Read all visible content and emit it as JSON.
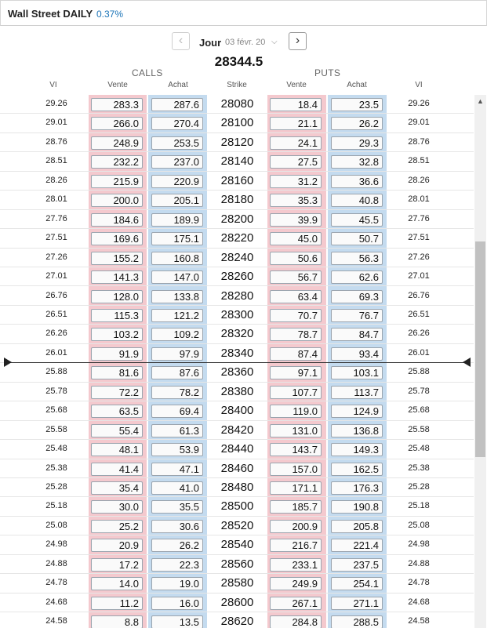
{
  "header": {
    "title": "Wall Street DAILY",
    "change": "0.37%"
  },
  "nav": {
    "prev_icon": "chevron-left-icon",
    "next_icon": "chevron-right-icon",
    "period": "Jour",
    "date": "03 févr. 20",
    "caret": "⌵"
  },
  "underlying_price": "28344.5",
  "groups": {
    "calls": "CALLS",
    "puts": "PUTS"
  },
  "columns": {
    "vi_left": "VI",
    "call_vente": "Vente",
    "call_achat": "Achat",
    "strike": "Strike",
    "put_vente": "Vente",
    "put_achat": "Achat",
    "vi_right": "VI"
  },
  "colors": {
    "sell_band": "#f4c9ce",
    "buy_band": "#c4dbef",
    "change": "#1a73b7"
  },
  "scroll": {
    "thumb_fraction": 0.4
  },
  "rows": [
    {
      "vi": "29.26",
      "cv": "283.3",
      "ca": "287.6",
      "strike": "28080",
      "pv": "18.4",
      "pa": "23.5",
      "vi2": "29.26"
    },
    {
      "vi": "29.01",
      "cv": "266.0",
      "ca": "270.4",
      "strike": "28100",
      "pv": "21.1",
      "pa": "26.2",
      "vi2": "29.01"
    },
    {
      "vi": "28.76",
      "cv": "248.9",
      "ca": "253.5",
      "strike": "28120",
      "pv": "24.1",
      "pa": "29.3",
      "vi2": "28.76"
    },
    {
      "vi": "28.51",
      "cv": "232.2",
      "ca": "237.0",
      "strike": "28140",
      "pv": "27.5",
      "pa": "32.8",
      "vi2": "28.51"
    },
    {
      "vi": "28.26",
      "cv": "215.9",
      "ca": "220.9",
      "strike": "28160",
      "pv": "31.2",
      "pa": "36.6",
      "vi2": "28.26"
    },
    {
      "vi": "28.01",
      "cv": "200.0",
      "ca": "205.1",
      "strike": "28180",
      "pv": "35.3",
      "pa": "40.8",
      "vi2": "28.01"
    },
    {
      "vi": "27.76",
      "cv": "184.6",
      "ca": "189.9",
      "strike": "28200",
      "pv": "39.9",
      "pa": "45.5",
      "vi2": "27.76"
    },
    {
      "vi": "27.51",
      "cv": "169.6",
      "ca": "175.1",
      "strike": "28220",
      "pv": "45.0",
      "pa": "50.7",
      "vi2": "27.51"
    },
    {
      "vi": "27.26",
      "cv": "155.2",
      "ca": "160.8",
      "strike": "28240",
      "pv": "50.6",
      "pa": "56.3",
      "vi2": "27.26"
    },
    {
      "vi": "27.01",
      "cv": "141.3",
      "ca": "147.0",
      "strike": "28260",
      "pv": "56.7",
      "pa": "62.6",
      "vi2": "27.01"
    },
    {
      "vi": "26.76",
      "cv": "128.0",
      "ca": "133.8",
      "strike": "28280",
      "pv": "63.4",
      "pa": "69.3",
      "vi2": "26.76"
    },
    {
      "vi": "26.51",
      "cv": "115.3",
      "ca": "121.2",
      "strike": "28300",
      "pv": "70.7",
      "pa": "76.7",
      "vi2": "26.51"
    },
    {
      "vi": "26.26",
      "cv": "103.2",
      "ca": "109.2",
      "strike": "28320",
      "pv": "78.7",
      "pa": "84.7",
      "vi2": "26.26"
    },
    {
      "vi": "26.01",
      "cv": "91.9",
      "ca": "97.9",
      "strike": "28340",
      "pv": "87.4",
      "pa": "93.4",
      "vi2": "26.01"
    },
    {
      "vi": "25.88",
      "cv": "81.6",
      "ca": "87.6",
      "strike": "28360",
      "pv": "97.1",
      "pa": "103.1",
      "vi2": "25.88"
    },
    {
      "vi": "25.78",
      "cv": "72.2",
      "ca": "78.2",
      "strike": "28380",
      "pv": "107.7",
      "pa": "113.7",
      "vi2": "25.78"
    },
    {
      "vi": "25.68",
      "cv": "63.5",
      "ca": "69.4",
      "strike": "28400",
      "pv": "119.0",
      "pa": "124.9",
      "vi2": "25.68"
    },
    {
      "vi": "25.58",
      "cv": "55.4",
      "ca": "61.3",
      "strike": "28420",
      "pv": "131.0",
      "pa": "136.8",
      "vi2": "25.58"
    },
    {
      "vi": "25.48",
      "cv": "48.1",
      "ca": "53.9",
      "strike": "28440",
      "pv": "143.7",
      "pa": "149.3",
      "vi2": "25.48"
    },
    {
      "vi": "25.38",
      "cv": "41.4",
      "ca": "47.1",
      "strike": "28460",
      "pv": "157.0",
      "pa": "162.5",
      "vi2": "25.38"
    },
    {
      "vi": "25.28",
      "cv": "35.4",
      "ca": "41.0",
      "strike": "28480",
      "pv": "171.1",
      "pa": "176.3",
      "vi2": "25.28"
    },
    {
      "vi": "25.18",
      "cv": "30.0",
      "ca": "35.5",
      "strike": "28500",
      "pv": "185.7",
      "pa": "190.8",
      "vi2": "25.18"
    },
    {
      "vi": "25.08",
      "cv": "25.2",
      "ca": "30.6",
      "strike": "28520",
      "pv": "200.9",
      "pa": "205.8",
      "vi2": "25.08"
    },
    {
      "vi": "24.98",
      "cv": "20.9",
      "ca": "26.2",
      "strike": "28540",
      "pv": "216.7",
      "pa": "221.4",
      "vi2": "24.98"
    },
    {
      "vi": "24.88",
      "cv": "17.2",
      "ca": "22.3",
      "strike": "28560",
      "pv": "233.1",
      "pa": "237.5",
      "vi2": "24.88"
    },
    {
      "vi": "24.78",
      "cv": "14.0",
      "ca": "19.0",
      "strike": "28580",
      "pv": "249.9",
      "pa": "254.1",
      "vi2": "24.78"
    },
    {
      "vi": "24.68",
      "cv": "11.2",
      "ca": "16.0",
      "strike": "28600",
      "pv": "267.1",
      "pa": "271.1",
      "vi2": "24.68"
    },
    {
      "vi": "24.58",
      "cv": "8.8",
      "ca": "13.5",
      "strike": "28620",
      "pv": "284.8",
      "pa": "288.5",
      "vi2": "24.58"
    }
  ]
}
